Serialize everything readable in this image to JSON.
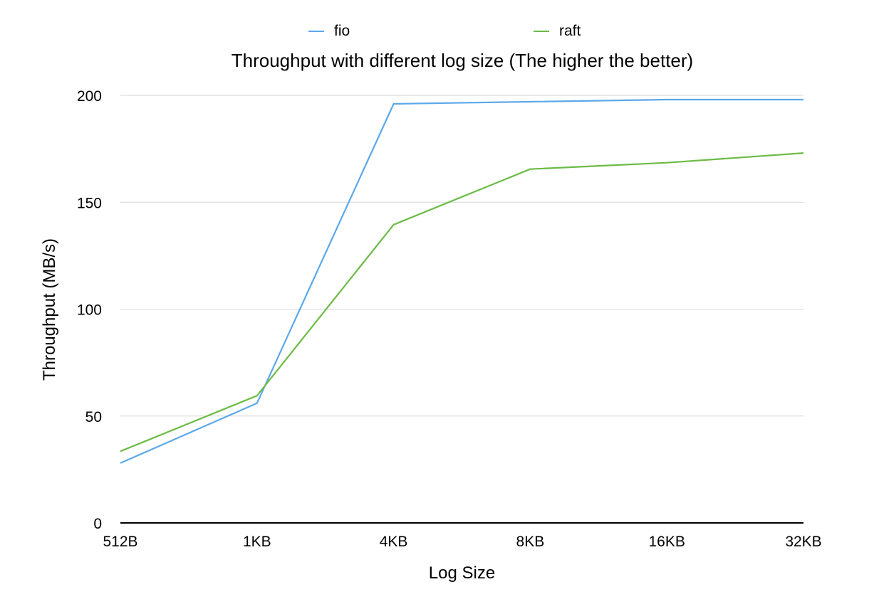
{
  "chart_data": {
    "type": "line",
    "title": "Throughput with different log size (The higher the better)",
    "xlabel": "Log Size",
    "ylabel": "Throughput (MB/s)",
    "categories": [
      "512B",
      "1KB",
      "4KB",
      "8KB",
      "16KB",
      "32KB"
    ],
    "ylim": [
      0,
      200
    ],
    "yticks": [
      "0",
      "50",
      "100",
      "150",
      "200"
    ],
    "grid": true,
    "legend_position": "top",
    "series": [
      {
        "name": "fio",
        "color": "#5BA8E9",
        "values": [
          28,
          56,
          196,
          197,
          198,
          198
        ]
      },
      {
        "name": "raft",
        "color": "#6CBB45",
        "values": [
          33.5,
          59.5,
          139.5,
          165.5,
          168.5,
          173
        ]
      }
    ]
  }
}
